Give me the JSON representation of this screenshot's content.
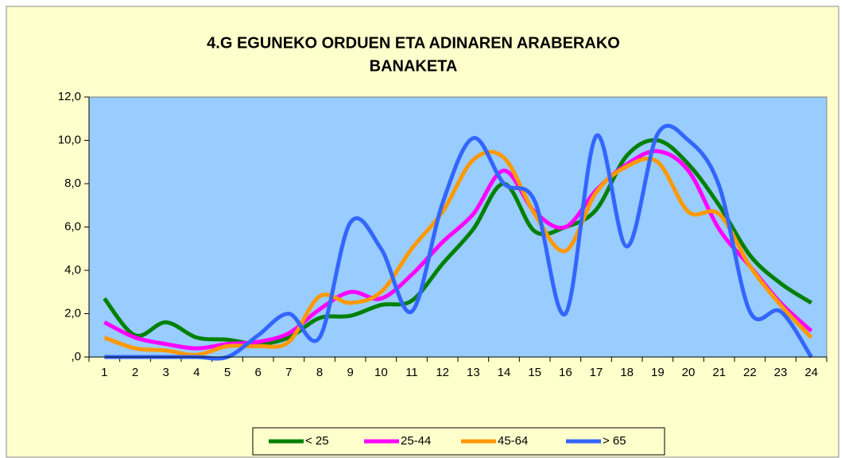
{
  "chart_data": {
    "type": "line",
    "title": [
      "4.G  EGUNEKO ORDUEN ETA ADINAREN ARABERAKO",
      "BANAKETA"
    ],
    "categories": [
      "1",
      "2",
      "3",
      "4",
      "5",
      "6",
      "7",
      "8",
      "9",
      "10",
      "11",
      "12",
      "13",
      "14",
      "15",
      "16",
      "17",
      "18",
      "19",
      "20",
      "21",
      "22",
      "23",
      "24"
    ],
    "series": [
      {
        "name": "< 25",
        "color": "#008000",
        "values": [
          2.7,
          1.0,
          1.6,
          0.9,
          0.8,
          0.6,
          0.9,
          1.8,
          1.9,
          2.4,
          2.6,
          4.3,
          5.9,
          8.0,
          5.8,
          6.0,
          6.8,
          9.3,
          10.0,
          8.9,
          7.0,
          4.7,
          3.4,
          2.5
        ]
      },
      {
        "name": "25-44",
        "color": "#ff00ff",
        "values": [
          1.6,
          0.9,
          0.6,
          0.4,
          0.6,
          0.7,
          1.1,
          2.2,
          3.0,
          2.7,
          3.8,
          5.3,
          6.6,
          8.6,
          6.7,
          6.0,
          7.7,
          8.9,
          9.5,
          8.6,
          5.9,
          4.2,
          2.5,
          1.2
        ]
      },
      {
        "name": "45-64",
        "color": "#ff9900",
        "values": [
          0.9,
          0.4,
          0.3,
          0.1,
          0.5,
          0.5,
          0.7,
          2.8,
          2.5,
          3.0,
          5.0,
          6.7,
          9.1,
          9.2,
          6.6,
          4.9,
          7.6,
          8.8,
          9.0,
          6.7,
          6.6,
          4.2,
          2.4,
          0.9
        ]
      },
      {
        "name": "> 65",
        "color": "#3366ff",
        "values": [
          0,
          0,
          0,
          0,
          0,
          1.0,
          2.0,
          0.9,
          6.2,
          5.0,
          2.1,
          7.1,
          10.1,
          8.0,
          7.2,
          2.0,
          10.2,
          5.1,
          10.3,
          10.0,
          7.9,
          2.1,
          2.1,
          0
        ]
      }
    ],
    "ylim": [
      0,
      12
    ],
    "yticks": [
      {
        "value": 0,
        "label": ",0"
      },
      {
        "value": 2,
        "label": "2,0"
      },
      {
        "value": 4,
        "label": "4,0"
      },
      {
        "value": 6,
        "label": "6,0"
      },
      {
        "value": 8,
        "label": "8,0"
      },
      {
        "value": 10,
        "label": "10,0"
      },
      {
        "value": 12,
        "label": "12,0"
      }
    ],
    "smooth": true,
    "legend": "bottom"
  }
}
